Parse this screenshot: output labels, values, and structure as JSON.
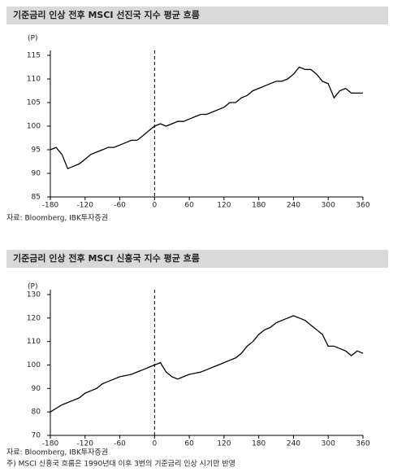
{
  "chart_data": [
    {
      "type": "line",
      "title": "기준금리 인상 전후 MSCI 선진국 지수 평균 흐름",
      "ylabel": "(P)",
      "source": "자료: Bloomberg, IBK투자증권",
      "x": [
        -180,
        -170,
        -160,
        -150,
        -140,
        -130,
        -120,
        -110,
        -100,
        -90,
        -80,
        -70,
        -60,
        -50,
        -40,
        -30,
        -20,
        -10,
        0,
        10,
        20,
        30,
        40,
        50,
        60,
        70,
        80,
        90,
        100,
        110,
        120,
        130,
        140,
        150,
        160,
        170,
        180,
        190,
        200,
        210,
        220,
        230,
        240,
        250,
        260,
        270,
        280,
        290,
        300,
        310,
        320,
        330,
        340,
        350,
        360
      ],
      "values": [
        95,
        95.5,
        94,
        91,
        91.5,
        92,
        93,
        94,
        94.5,
        95,
        95.5,
        95.5,
        96,
        96.5,
        97,
        97,
        98,
        99,
        100,
        100.5,
        100,
        100.5,
        101,
        101,
        101.5,
        102,
        102.5,
        102.5,
        103,
        103.5,
        104,
        105,
        105,
        106,
        106.5,
        107.5,
        108,
        108.5,
        109,
        109.5,
        109.5,
        110,
        111,
        112.5,
        112,
        112,
        111,
        109.5,
        109,
        106,
        107.5,
        108,
        107,
        107,
        107
      ],
      "color": "#000000",
      "xlim": [
        -180,
        360
      ],
      "xticks": [
        -180,
        -120,
        -60,
        0,
        60,
        120,
        180,
        240,
        300,
        360
      ],
      "ylim": [
        85,
        115
      ],
      "yticks": [
        85,
        90,
        95,
        100,
        105,
        110,
        115
      ],
      "vline": 0,
      "grid": false
    },
    {
      "type": "line",
      "title": "기준금리 인상 전후 MSCI 신흥국 지수 평균 흐름",
      "ylabel": "(P)",
      "source": "자료: Bloomberg, IBK투자증권",
      "note": "주) MSCI 신흥국 흐름은 1990년대 이후 3번의 기준금리 인상 시기만 반영",
      "x": [
        -180,
        -170,
        -160,
        -150,
        -140,
        -130,
        -120,
        -110,
        -100,
        -90,
        -80,
        -70,
        -60,
        -50,
        -40,
        -30,
        -20,
        -10,
        0,
        10,
        20,
        30,
        40,
        50,
        60,
        70,
        80,
        90,
        100,
        110,
        120,
        130,
        140,
        150,
        160,
        170,
        180,
        190,
        200,
        210,
        220,
        230,
        240,
        250,
        260,
        270,
        280,
        290,
        300,
        310,
        320,
        330,
        340,
        350,
        360
      ],
      "values": [
        80,
        81.5,
        83,
        84,
        85,
        86,
        88,
        89,
        90,
        92,
        93,
        94,
        95,
        95.5,
        96,
        97,
        98,
        99,
        100,
        101,
        97,
        95,
        94,
        95,
        96,
        96.5,
        97,
        98,
        99,
        100,
        101,
        102,
        103,
        105,
        108,
        110,
        113,
        115,
        116,
        118,
        119,
        120,
        121,
        120,
        119,
        117,
        115,
        113,
        108,
        108,
        107,
        106,
        104,
        106,
        105
      ],
      "color": "#000000",
      "xlim": [
        -180,
        360
      ],
      "xticks": [
        -180,
        -120,
        -60,
        0,
        60,
        120,
        180,
        240,
        300,
        360
      ],
      "ylim": [
        70,
        130
      ],
      "yticks": [
        70,
        80,
        90,
        100,
        110,
        120,
        130
      ],
      "vline": 0,
      "grid": false
    }
  ]
}
